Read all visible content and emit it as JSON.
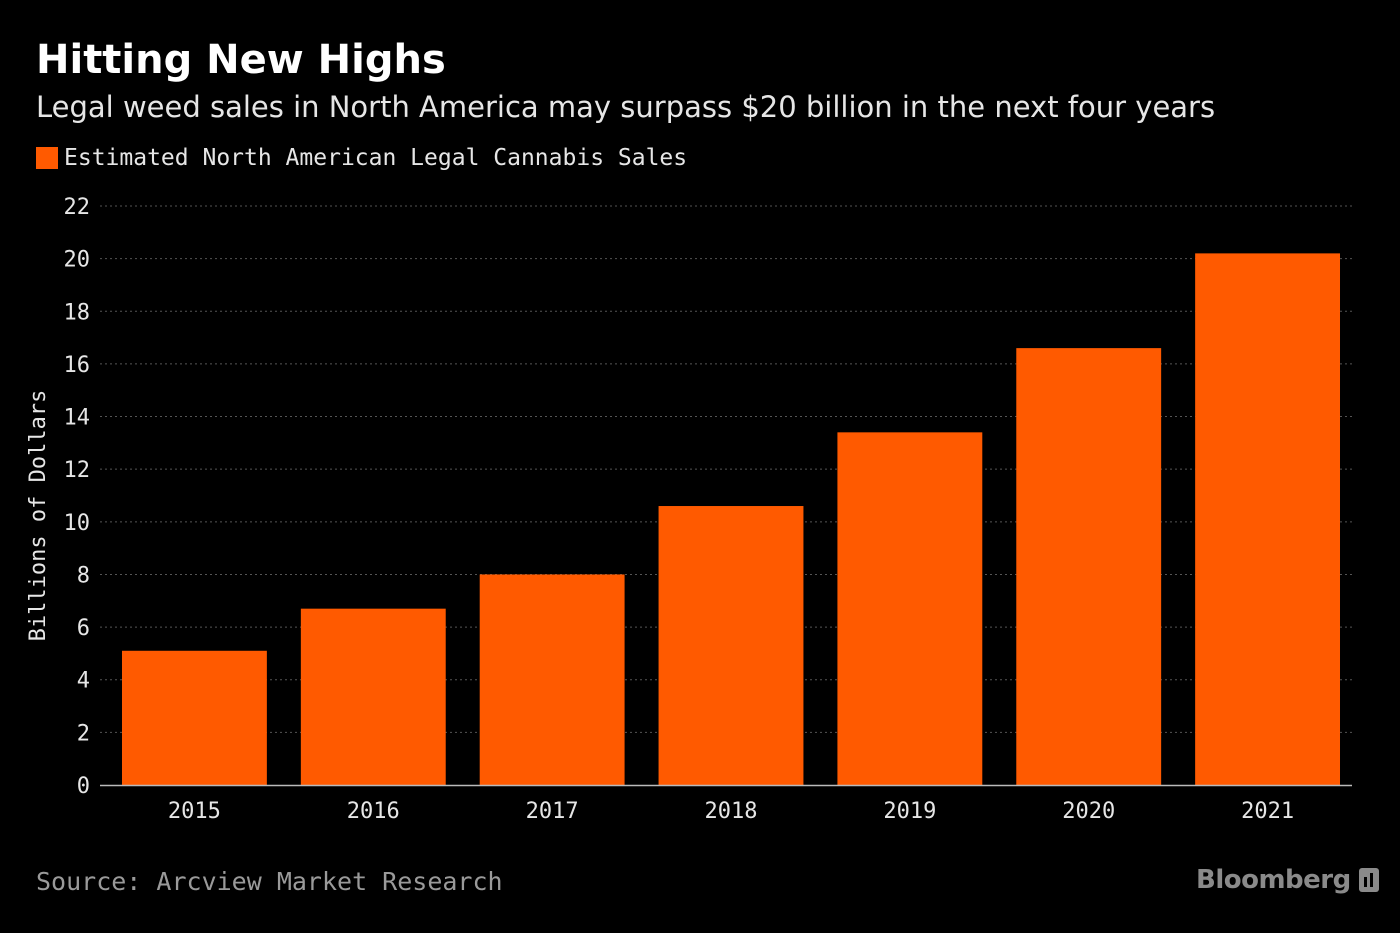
{
  "header": {
    "title": "Hitting New Highs",
    "subtitle": "Legal weed sales in North America may surpass $20 billion in the next four years"
  },
  "footer": {
    "source": "Source: Arcview Market Research",
    "brand": "Bloomberg"
  },
  "colors": {
    "background": "#000000",
    "bar": "#ff5a00",
    "gridline": "#555555",
    "text": "#ffffff"
  },
  "chart_data": {
    "type": "bar",
    "categories": [
      "2015",
      "2016",
      "2017",
      "2018",
      "2019",
      "2020",
      "2021"
    ],
    "series": [
      {
        "name": "Estimated North American Legal Cannabis Sales",
        "values": [
          5.1,
          6.7,
          8.0,
          10.6,
          13.4,
          16.6,
          20.2
        ],
        "color": "#ff5a00"
      }
    ],
    "ylabel": "Billions of Dollars",
    "ylim": [
      0,
      22
    ],
    "yticks": [
      0,
      2,
      4,
      6,
      8,
      10,
      12,
      14,
      16,
      18,
      20,
      22
    ],
    "grid": true,
    "legend_position": "top-left"
  }
}
